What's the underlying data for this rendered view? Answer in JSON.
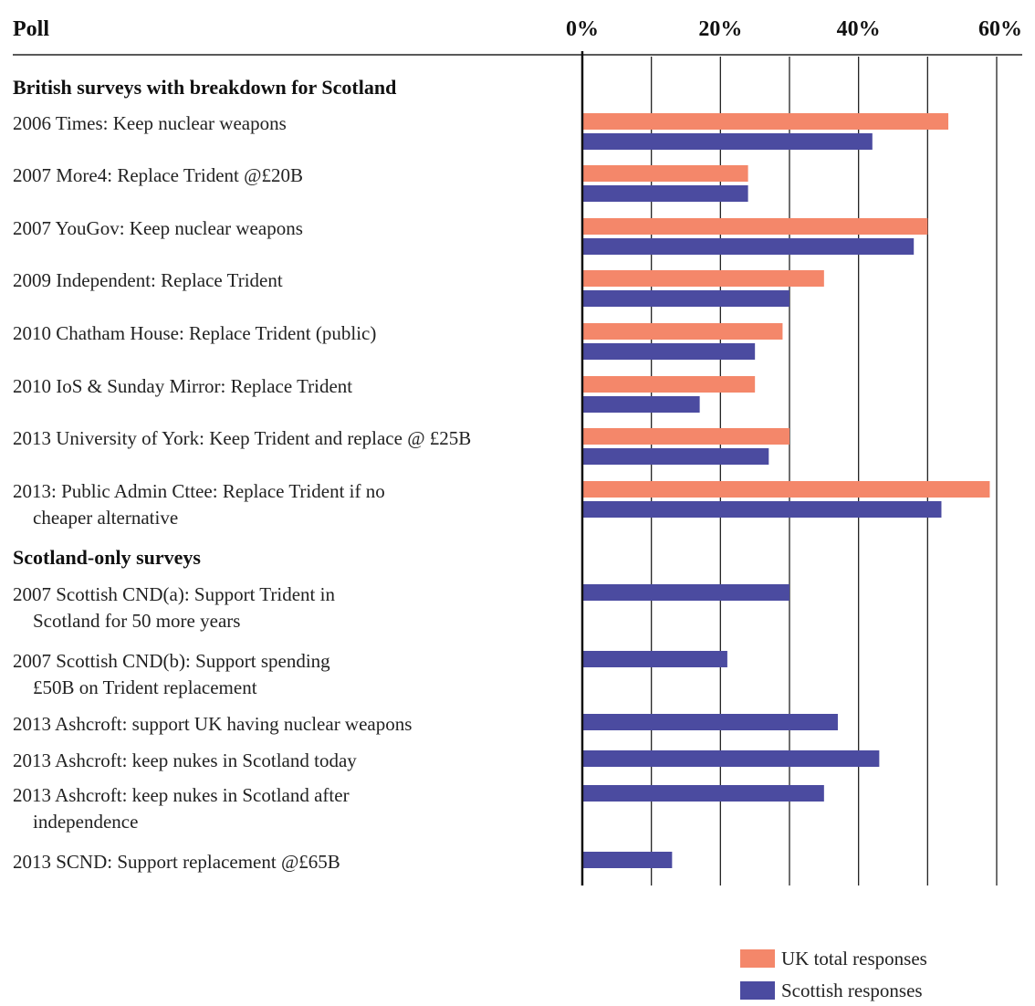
{
  "chart_data": {
    "type": "bar",
    "orientation": "horizontal",
    "column_title": "Poll",
    "xlim": [
      0,
      60
    ],
    "ticks": [
      "0%",
      "20%",
      "40%",
      "60%"
    ],
    "tick_values": [
      0,
      20,
      40,
      60
    ],
    "grid": true,
    "legend_position": "bottom-right",
    "colors": {
      "uk": "#f4876a",
      "scot": "#4b4ba0"
    },
    "series": [
      {
        "key": "uk",
        "name": "UK total responses"
      },
      {
        "key": "scot",
        "name": "Scottish responses"
      }
    ],
    "groups": [
      {
        "heading": "British surveys with breakdown for Scotland",
        "rows": [
          {
            "label": [
              "2006 Times: Keep nuclear weapons"
            ],
            "uk": 53,
            "scot": 42
          },
          {
            "label": [
              "2007 More4: Replace Trident @£20B"
            ],
            "uk": 24,
            "scot": 24
          },
          {
            "label": [
              "2007 YouGov: Keep nuclear weapons"
            ],
            "uk": 50,
            "scot": 48
          },
          {
            "label": [
              "2009 Independent: Replace Trident"
            ],
            "uk": 35,
            "scot": 30
          },
          {
            "label": [
              "2010 Chatham House: Replace Trident (public)"
            ],
            "uk": 29,
            "scot": 25
          },
          {
            "label": [
              "2010 IoS & Sunday Mirror: Replace Trident"
            ],
            "uk": 25,
            "scot": 17
          },
          {
            "label": [
              "2013 University of York: Keep Trident and replace @ £25B"
            ],
            "uk": 30,
            "scot": 27
          },
          {
            "label": [
              "2013: Public Admin Cttee: Replace Trident if no",
              "cheaper alternative"
            ],
            "uk": 59,
            "scot": 52
          }
        ]
      },
      {
        "heading": "Scotland-only surveys",
        "rows": [
          {
            "label": [
              "2007 Scottish CND(a): Support Trident in",
              "Scotland for 50 more years"
            ],
            "uk": null,
            "scot": 30
          },
          {
            "label": [
              "2007 Scottish CND(b): Support spending",
              "£50B on Trident replacement"
            ],
            "uk": null,
            "scot": 21
          },
          {
            "label": [
              "2013 Ashcroft: support UK having nuclear weapons"
            ],
            "uk": null,
            "scot": 37
          },
          {
            "label": [
              "2013 Ashcroft: keep nukes in Scotland today"
            ],
            "uk": null,
            "scot": 43
          },
          {
            "label": [
              "2013 Ashcroft: keep nukes in Scotland after",
              "independence"
            ],
            "uk": null,
            "scot": 35
          },
          {
            "label": [
              "2013 SCND: Support replacement @£65B"
            ],
            "uk": null,
            "scot": 13
          }
        ]
      }
    ]
  }
}
